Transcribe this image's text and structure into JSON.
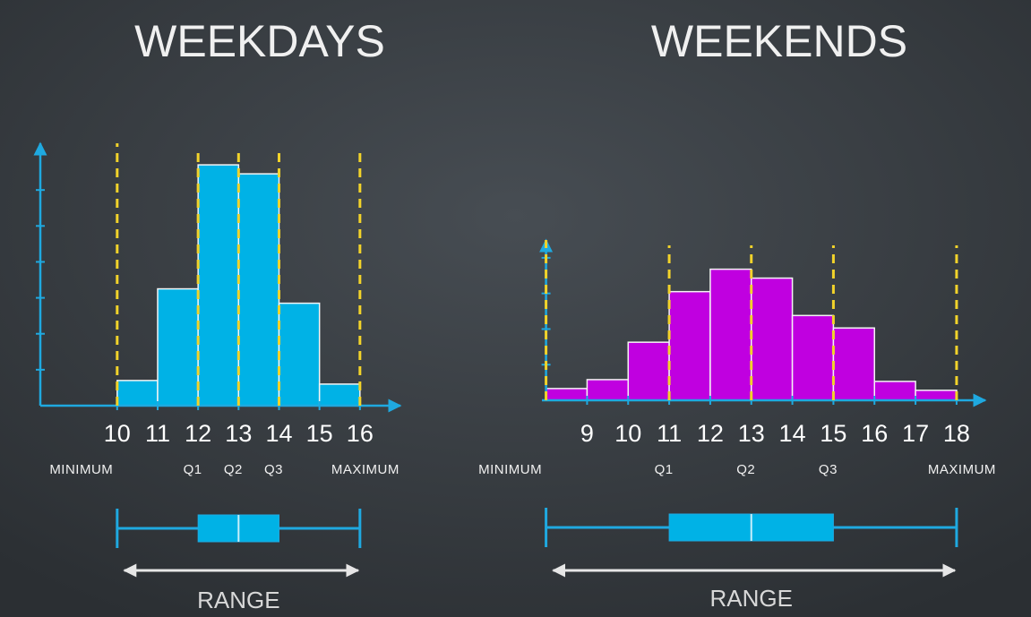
{
  "chart_data": [
    {
      "type": "histogram",
      "title": "WEEKDAYS",
      "bins": [
        10,
        11,
        12,
        13,
        14,
        15,
        16
      ],
      "values": [
        0.7,
        3.25,
        6.7,
        6.45,
        2.85,
        0.6
      ],
      "color": "#00b2e6",
      "xlim": [
        8.1,
        17
      ],
      "xticks": [
        10,
        11,
        12,
        13,
        14,
        15,
        16
      ],
      "ylim": [
        0,
        7.3
      ],
      "yticks": [
        1,
        2,
        3,
        4,
        5,
        6,
        7
      ],
      "markers": [
        {
          "label": "MINIMUM",
          "value": 10
        },
        {
          "label": "Q1",
          "value": 12
        },
        {
          "label": "Q2",
          "value": 13
        },
        {
          "label": "Q3",
          "value": 14
        },
        {
          "label": "MAXIMUM",
          "value": 16
        }
      ],
      "range_label": "RANGE"
    },
    {
      "type": "histogram",
      "title": "WEEKENDS",
      "bins": [
        8,
        9,
        10,
        11,
        12,
        13,
        14,
        15,
        16,
        17,
        18
      ],
      "values": [
        0.33,
        0.58,
        1.63,
        3.05,
        3.68,
        3.43,
        2.38,
        2.03,
        0.53,
        0.28
      ],
      "color": "#c000e0",
      "xlim": [
        7.9,
        18.7
      ],
      "xticks": [
        9,
        10,
        11,
        12,
        13,
        14,
        15,
        16,
        17,
        18
      ],
      "ylim": [
        0,
        4.5
      ],
      "yticks": [
        1,
        2,
        3,
        4
      ],
      "markers": [
        {
          "label": "MINIMUM",
          "value": 8
        },
        {
          "label": "Q1",
          "value": 11
        },
        {
          "label": "Q2",
          "value": 13
        },
        {
          "label": "Q3",
          "value": 15
        },
        {
          "label": "MAXIMUM",
          "value": 18
        }
      ],
      "range_label": "RANGE"
    }
  ]
}
